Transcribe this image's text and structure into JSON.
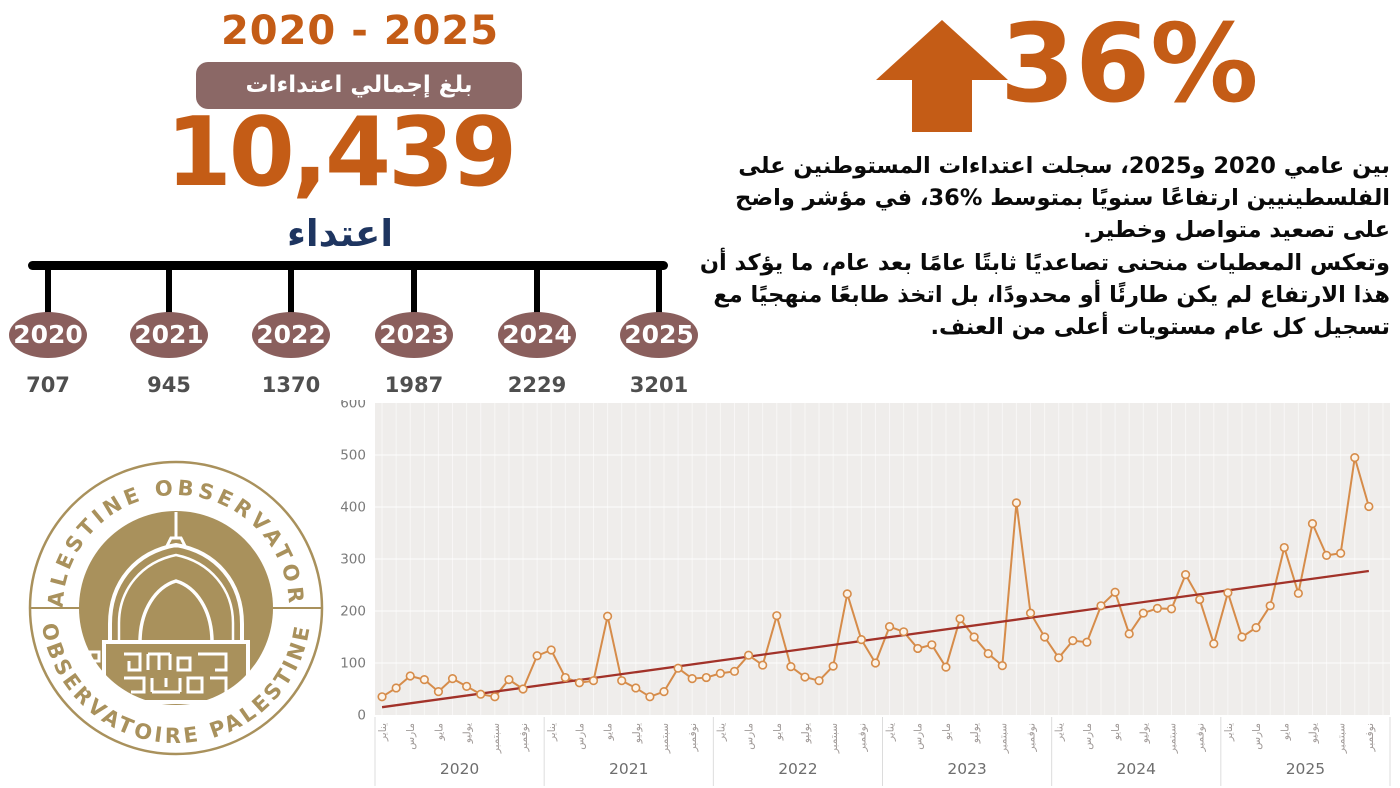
{
  "header": {
    "period": "2020 - 2025",
    "badge": "بلغ إجمالي اعتداءات المستوطنين",
    "total": "10,439",
    "total_unit": "اعتداء"
  },
  "highlight": {
    "percent": "36%",
    "arrow_icon": "up-arrow",
    "color": "#C45C16"
  },
  "description": {
    "paragraph1": "بين عامي 2020 و2025، سجلت اعتداءات المستوطنين على الفلسطينيين ارتفاعًا سنويًا بمتوسط %36، في مؤشر واضح على تصعيد متواصل وخطير.",
    "paragraph2": "وتعكس المعطيات منحنى تصاعديًا ثابتًا عامًا بعد عام، ما يؤكد أن هذا الارتفاع لم يكن طارئًا أو محدودًا، بل اتخذ طابعًا منهجيًا مع تسجيل كل عام مستويات أعلى من العنف."
  },
  "timeline": {
    "years": [
      {
        "year": "2020",
        "value": "707"
      },
      {
        "year": "2021",
        "value": "945"
      },
      {
        "year": "2022",
        "value": "1370"
      },
      {
        "year": "2023",
        "value": "1987"
      },
      {
        "year": "2024",
        "value": "2229"
      },
      {
        "year": "2025",
        "value": "3201"
      }
    ]
  },
  "logo": {
    "top_text": "PALESTINE OBSERVATORY",
    "bottom_text": "OBSERVATOIRE PALESTINE",
    "gold": "#A9915C"
  },
  "colors": {
    "accent_orange": "#C45C16",
    "badge_mauve": "#8B6866",
    "oval_mauve": "#8A5F5D",
    "navy": "#1E3560",
    "value_gray": "#4F4F4F"
  },
  "chart_data": {
    "type": "line",
    "title": "",
    "xlabel": "",
    "ylabel": "",
    "ylim": [
      0,
      600
    ],
    "yticks": [
      0,
      100,
      200,
      300,
      400,
      500,
      600
    ],
    "grid": true,
    "legend": "none",
    "years": [
      "2020",
      "2021",
      "2022",
      "2023",
      "2024",
      "2025"
    ],
    "month_tick_labels": [
      "يناير",
      "مارس",
      "مايو",
      "يوليو",
      "سبتمبر",
      "نوفمبر"
    ],
    "monthly": {
      "2020": [
        35,
        52,
        75,
        68,
        45,
        70,
        55,
        40,
        35,
        68,
        50,
        114
      ],
      "2021": [
        125,
        72,
        62,
        66,
        190,
        66,
        52,
        35,
        45,
        90,
        70,
        72
      ],
      "2022": [
        80,
        84,
        115,
        96,
        191,
        93,
        73,
        66,
        94,
        233,
        145,
        100
      ],
      "2023": [
        170,
        160,
        128,
        135,
        92,
        185,
        150,
        118,
        95,
        408,
        196,
        150
      ],
      "2024": [
        110,
        143,
        140,
        210,
        236,
        156,
        196,
        205,
        204,
        270,
        222,
        137
      ],
      "2025": [
        235,
        150,
        168,
        210,
        322,
        234,
        368,
        307,
        311,
        495,
        401
      ]
    },
    "annual_totals": [
      707,
      945,
      1370,
      1987,
      2229,
      3201
    ],
    "trend": {
      "start": 15,
      "end": 277,
      "color": "#A23229"
    },
    "line_color": "#D68C4A",
    "marker_fill": "#FCF3E8",
    "plot_bg": "#EFEDEB",
    "tick_color": "#7A7A7A",
    "month_label_color": "#A09A98",
    "year_label_color": "#6E6E6E",
    "separator_color": "#DCDCDC"
  }
}
